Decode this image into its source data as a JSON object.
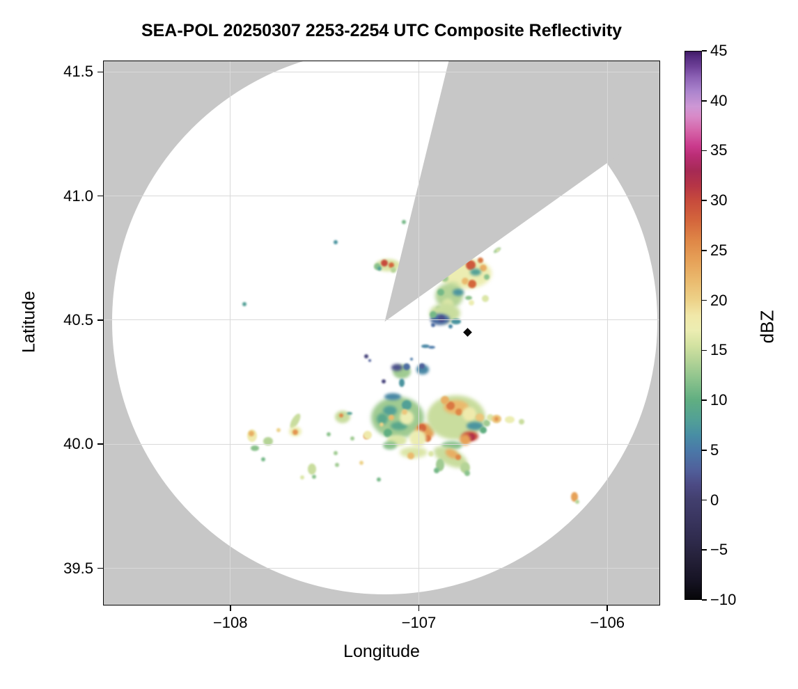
{
  "title": "SEA-POL 20250307 2253-2254 UTC Composite Reflectivity",
  "axes": {
    "xlabel": "Longitude",
    "ylabel": "Latitude",
    "xlim": [
      -108.675,
      -105.72
    ],
    "ylim": [
      39.35,
      41.546
    ],
    "x_ticks": [
      {
        "value": -108,
        "label": "−108"
      },
      {
        "value": -107,
        "label": "−107"
      },
      {
        "value": -106,
        "label": "−106"
      }
    ],
    "y_ticks": [
      {
        "value": 41.5,
        "label": "41.5"
      },
      {
        "value": 41.0,
        "label": "41.0"
      },
      {
        "value": 40.5,
        "label": "40.5"
      },
      {
        "value": 40.0,
        "label": "40.0"
      },
      {
        "value": 39.5,
        "label": "39.5"
      }
    ],
    "grid": true
  },
  "colorbar": {
    "label": "dBZ",
    "min": -10,
    "max": 45,
    "tick_values": [
      45,
      40,
      35,
      30,
      25,
      20,
      15,
      10,
      5,
      0,
      -5,
      -10
    ],
    "tick_labels": [
      "45",
      "40",
      "35",
      "30",
      "25",
      "20",
      "15",
      "10",
      "5",
      "0",
      "−5",
      "−10"
    ],
    "colormap_stops": [
      [
        -10,
        "#060609"
      ],
      [
        -8,
        "#171425"
      ],
      [
        -6,
        "#242038"
      ],
      [
        -4,
        "#2f2b4d"
      ],
      [
        -2,
        "#39355f"
      ],
      [
        0,
        "#423f6e"
      ],
      [
        1.5,
        "#4c4a84"
      ],
      [
        3,
        "#50609b"
      ],
      [
        5,
        "#4a79a8"
      ],
      [
        6.5,
        "#488ea4"
      ],
      [
        8,
        "#52a096"
      ],
      [
        10,
        "#60ae81"
      ],
      [
        12,
        "#8ac28c"
      ],
      [
        14,
        "#b5d497"
      ],
      [
        15.5,
        "#d3e2a1"
      ],
      [
        17,
        "#ecedb2"
      ],
      [
        18.5,
        "#f1e8a9"
      ],
      [
        20,
        "#edd289"
      ],
      [
        22,
        "#eaba6e"
      ],
      [
        24,
        "#e6a158"
      ],
      [
        26,
        "#df8747"
      ],
      [
        28,
        "#d4663c"
      ],
      [
        30,
        "#c74b3c"
      ],
      [
        31.5,
        "#b63546"
      ],
      [
        33,
        "#a62a54"
      ],
      [
        34.5,
        "#b92d74"
      ],
      [
        35.5,
        "#ca3a8c"
      ],
      [
        37,
        "#d563a8"
      ],
      [
        38.5,
        "#d88ac8"
      ],
      [
        39.5,
        "#cd97d5"
      ],
      [
        41,
        "#ab84cd"
      ],
      [
        42.5,
        "#8a5fb3"
      ],
      [
        43.5,
        "#6d4097"
      ],
      [
        44.5,
        "#532a7e"
      ],
      [
        45,
        "#3f1a63"
      ]
    ]
  },
  "map": {
    "outside_color": "#c7c7c7",
    "coverage_color": "#ffffff",
    "grid_color": "#d9d9d9",
    "radar_center": {
      "lon": -107.181,
      "lat": 40.494
    },
    "range_ring_radius_deg_lat": 1.099,
    "blocked_sector_az_deg": {
      "start": 13.8,
      "end": 54.5
    },
    "marker": {
      "shape": "diamond",
      "color": "#0a0a0a",
      "lon": -106.742,
      "lat": 40.452
    }
  },
  "chart_data": {
    "type": "heatmap",
    "title": "SEA-POL 20250307 2253-2254 UTC Composite Reflectivity",
    "xlabel": "Longitude",
    "ylabel": "Latitude",
    "value_label": "dBZ",
    "xlim": [
      -108.675,
      -105.72
    ],
    "ylim": [
      39.35,
      41.546
    ],
    "value_range": [
      -10,
      45
    ],
    "cell_format": [
      "lon",
      "lat",
      "dbz",
      "rx_px",
      "ry_px",
      "rot_deg"
    ],
    "cells": [
      [
        -107.166,
        40.722,
        16,
        18,
        9,
        0
      ],
      [
        -107.181,
        40.73,
        30,
        5,
        5,
        0
      ],
      [
        -107.144,
        40.722,
        28,
        4,
        4,
        0
      ],
      [
        -107.218,
        40.716,
        12,
        5,
        5,
        0
      ],
      [
        -107.21,
        40.708,
        8,
        3,
        3,
        0
      ],
      [
        -107.133,
        40.702,
        14,
        4,
        4,
        0
      ],
      [
        -106.583,
        40.781,
        13,
        6,
        2.5,
        -35
      ],
      [
        -106.58,
        40.781,
        17,
        3,
        1.5,
        -35
      ],
      [
        -106.756,
        40.688,
        17,
        38,
        22,
        0
      ],
      [
        -106.83,
        40.747,
        15,
        14,
        8,
        0
      ],
      [
        -106.723,
        40.722,
        29,
        7,
        7,
        0
      ],
      [
        -106.775,
        40.738,
        24,
        6,
        6,
        0
      ],
      [
        -106.672,
        40.741,
        27,
        4,
        4,
        0
      ],
      [
        -106.657,
        40.71,
        23,
        5,
        5,
        0
      ],
      [
        -106.697,
        40.694,
        8,
        8,
        5,
        0
      ],
      [
        -106.716,
        40.646,
        28,
        6,
        6,
        0
      ],
      [
        -106.756,
        40.657,
        22,
        5,
        5,
        0
      ],
      [
        -106.875,
        40.696,
        12,
        6,
        6,
        0
      ],
      [
        -106.86,
        40.668,
        13,
        5,
        5,
        0
      ],
      [
        -106.638,
        40.674,
        12,
        4,
        4,
        0
      ],
      [
        -106.815,
        40.635,
        16,
        8,
        8,
        0
      ],
      [
        -106.841,
        40.598,
        14,
        20,
        18,
        0
      ],
      [
        -106.793,
        40.612,
        7,
        8,
        5,
        0
      ],
      [
        -106.882,
        40.612,
        11,
        5,
        5,
        0
      ],
      [
        -106.848,
        40.565,
        16,
        8,
        8,
        0
      ],
      [
        -106.893,
        40.545,
        8,
        4,
        4,
        0
      ],
      [
        -106.86,
        40.528,
        15,
        22,
        14,
        0
      ],
      [
        -106.886,
        40.503,
        4,
        14,
        8,
        0
      ],
      [
        -106.878,
        40.506,
        2,
        5,
        5,
        0
      ],
      [
        -106.801,
        40.494,
        7,
        7,
        4,
        0
      ],
      [
        -106.926,
        40.522,
        11,
        5,
        5,
        0
      ],
      [
        -106.923,
        40.48,
        4,
        3,
        3,
        0
      ],
      [
        -106.83,
        40.475,
        6,
        3,
        3,
        0
      ],
      [
        -106.734,
        40.59,
        12,
        5,
        3,
        0
      ],
      [
        -106.72,
        40.57,
        17,
        4,
        4,
        0
      ],
      [
        -106.646,
        40.587,
        16,
        5,
        5,
        0
      ],
      [
        -106.963,
        40.396,
        6,
        6,
        2.5,
        0
      ],
      [
        -106.93,
        40.391,
        5,
        5,
        2,
        0
      ],
      [
        -107.28,
        40.354,
        1,
        3,
        3,
        0
      ],
      [
        -107.262,
        40.337,
        3,
        2,
        2,
        0
      ],
      [
        -107.089,
        40.292,
        13,
        13,
        10,
        0
      ],
      [
        -107.118,
        40.309,
        2,
        8,
        5,
        0
      ],
      [
        -107.066,
        40.312,
        4,
        5,
        5,
        0
      ],
      [
        -106.978,
        40.301,
        6,
        9,
        7,
        0
      ],
      [
        -106.985,
        40.315,
        3,
        4,
        4,
        0
      ],
      [
        -107.089,
        40.248,
        7,
        4,
        6,
        0
      ],
      [
        -107.185,
        40.253,
        1,
        3,
        3,
        0
      ],
      [
        -107.037,
        40.343,
        5,
        2,
        2,
        0
      ],
      [
        -107.111,
        40.107,
        13,
        38,
        30,
        0
      ],
      [
        -107.155,
        40.135,
        8,
        10,
        7,
        0
      ],
      [
        -107.192,
        40.102,
        9,
        8,
        8,
        0
      ],
      [
        -107.063,
        40.158,
        8,
        7,
        7,
        0
      ],
      [
        -107.107,
        40.074,
        9,
        12,
        6,
        0
      ],
      [
        -107.166,
        40.046,
        10,
        6,
        6,
        0
      ],
      [
        -107.137,
        40.191,
        6,
        12,
        5,
        0
      ],
      [
        -107.063,
        40.107,
        17,
        10,
        10,
        0
      ],
      [
        -107.118,
        40.015,
        16,
        14,
        8,
        0
      ],
      [
        -107.144,
        40.107,
        22,
        4,
        4,
        0
      ],
      [
        -107.074,
        40.129,
        21,
        4,
        4,
        0
      ],
      [
        -107.199,
        40.079,
        20,
        3,
        3,
        0
      ],
      [
        -107.277,
        40.032,
        26,
        4,
        4,
        0
      ],
      [
        -107.273,
        40.037,
        18,
        6,
        6,
        0
      ],
      [
        -107.155,
        39.995,
        12,
        10,
        6,
        0
      ],
      [
        -106.97,
        40.051,
        24,
        14,
        12,
        0
      ],
      [
        -106.982,
        40.065,
        28,
        6,
        6,
        0
      ],
      [
        -106.952,
        40.023,
        27,
        5,
        5,
        0
      ],
      [
        -107.007,
        40.023,
        17,
        12,
        12,
        0
      ],
      [
        -107.026,
        39.967,
        16,
        20,
        8,
        0
      ],
      [
        -107.044,
        39.953,
        22,
        5,
        5,
        0
      ],
      [
        -106.804,
        40.107,
        15,
        42,
        32,
        0
      ],
      [
        -106.804,
        40.149,
        22,
        18,
        10,
        0
      ],
      [
        -106.83,
        40.155,
        27,
        6,
        6,
        0
      ],
      [
        -106.786,
        40.129,
        26,
        5,
        5,
        0
      ],
      [
        -106.86,
        40.177,
        23,
        6,
        6,
        0
      ],
      [
        -106.731,
        40.121,
        18,
        10,
        10,
        0
      ],
      [
        -106.675,
        40.107,
        21,
        6,
        6,
        0
      ],
      [
        -106.701,
        40.074,
        7,
        12,
        6,
        0
      ],
      [
        -106.657,
        40.057,
        10,
        5,
        5,
        0
      ],
      [
        -106.727,
        40.032,
        30,
        12,
        7,
        0
      ],
      [
        -106.72,
        40.029,
        32,
        5,
        5,
        0
      ],
      [
        -106.756,
        40.018,
        24,
        8,
        8,
        0
      ],
      [
        -106.823,
        39.995,
        12,
        15,
        6,
        0
      ],
      [
        -106.638,
        40.085,
        13,
        5,
        5,
        0
      ],
      [
        -106.62,
        40.107,
        16,
        5,
        5,
        0
      ],
      [
        -106.587,
        40.102,
        21,
        7,
        6,
        0
      ],
      [
        -106.587,
        40.102,
        25,
        3,
        3,
        0
      ],
      [
        -106.517,
        40.099,
        17,
        7,
        5,
        0
      ],
      [
        -106.454,
        40.09,
        15,
        4,
        4,
        0
      ],
      [
        -106.83,
        39.947,
        15,
        26,
        12,
        25
      ],
      [
        -106.823,
        39.961,
        23,
        10,
        6,
        25
      ],
      [
        -106.793,
        39.947,
        26,
        4,
        4,
        0
      ],
      [
        -106.889,
        39.917,
        13,
        6,
        9,
        0
      ],
      [
        -106.904,
        39.894,
        11,
        4,
        4,
        0
      ],
      [
        -106.756,
        39.905,
        14,
        7,
        8,
        0
      ],
      [
        -106.742,
        39.883,
        12,
        4,
        4,
        0
      ],
      [
        -106.934,
        39.961,
        16,
        4,
        4,
        0
      ],
      [
        -107.886,
        40.034,
        18,
        7,
        9,
        0
      ],
      [
        -107.889,
        40.043,
        23,
        4,
        4,
        0
      ],
      [
        -107.801,
        40.012,
        14,
        7,
        6,
        0
      ],
      [
        -107.871,
        39.984,
        12,
        6,
        4,
        0
      ],
      [
        -107.827,
        39.939,
        11,
        3,
        3,
        0
      ],
      [
        -107.657,
        40.093,
        15,
        5,
        12,
        30
      ],
      [
        -107.657,
        40.051,
        17,
        9,
        7,
        0
      ],
      [
        -107.657,
        40.048,
        25,
        4,
        4,
        0
      ],
      [
        -107.745,
        40.057,
        20,
        3,
        3,
        0
      ],
      [
        -107.406,
        40.11,
        15,
        11,
        9,
        0
      ],
      [
        -107.41,
        40.115,
        26,
        3,
        3,
        0
      ],
      [
        -107.369,
        40.124,
        8,
        4,
        2,
        0
      ],
      [
        -107.48,
        40.04,
        12,
        3,
        3,
        0
      ],
      [
        -107.351,
        40.023,
        13,
        3,
        3,
        0
      ],
      [
        -107.443,
        39.964,
        13,
        3,
        3,
        0
      ],
      [
        -107.435,
        39.917,
        13,
        3,
        3,
        0
      ],
      [
        -107.568,
        39.9,
        15,
        6,
        8,
        0
      ],
      [
        -107.62,
        39.866,
        16,
        3,
        3,
        0
      ],
      [
        -107.554,
        39.869,
        12,
        3,
        3,
        0
      ],
      [
        -107.214,
        39.858,
        11,
        3,
        3,
        0
      ],
      [
        -107.306,
        39.925,
        20,
        3,
        3,
        0
      ],
      [
        -107.443,
        40.814,
        7,
        3,
        3,
        0
      ],
      [
        -107.081,
        40.895,
        11,
        3,
        3,
        0
      ],
      [
        -107.926,
        40.565,
        8,
        3,
        3,
        0
      ],
      [
        -106.173,
        39.787,
        24,
        5,
        7,
        0
      ],
      [
        -106.159,
        39.768,
        14,
        3,
        3,
        0
      ]
    ]
  }
}
